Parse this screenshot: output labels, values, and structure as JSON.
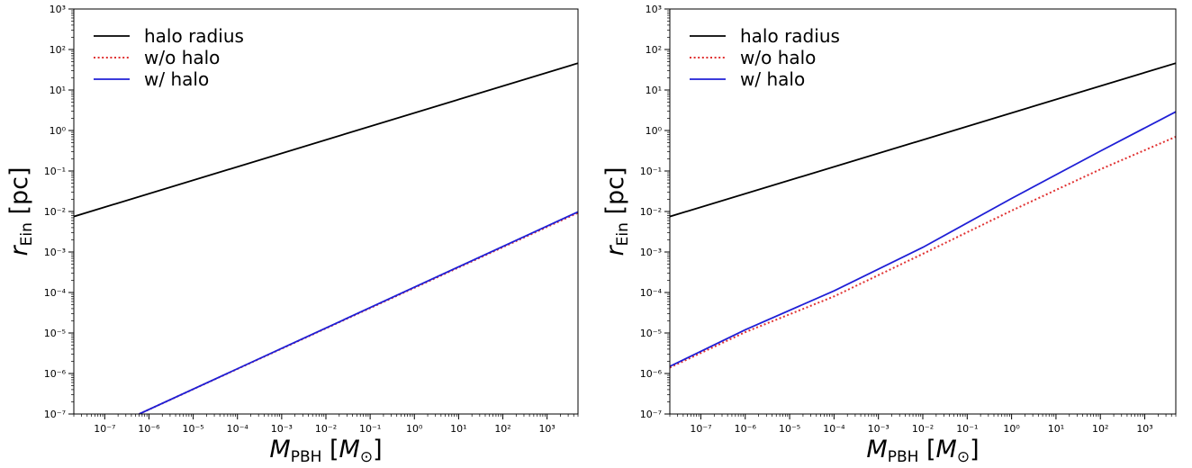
{
  "chart_data": [
    {
      "type": "line",
      "panel": "left",
      "xscale": "log",
      "yscale": "log",
      "xlim": [
        2e-08,
        5000
      ],
      "ylim": [
        1e-07,
        1000
      ],
      "x_ticks": [
        "10⁻⁷",
        "10⁻⁶",
        "10⁻⁵",
        "10⁻⁴",
        "10⁻³",
        "10⁻²",
        "10⁻¹",
        "10⁰",
        "10¹",
        "10²",
        "10³"
      ],
      "y_ticks": [
        "10⁻⁷",
        "10⁻⁶",
        "10⁻⁵",
        "10⁻⁴",
        "10⁻³",
        "10⁻²",
        "10⁻¹",
        "10⁰",
        "10¹",
        "10²",
        "10³"
      ],
      "xlabel": {
        "main": "M",
        "sub": "PBH",
        "unit_open": " [M",
        "unit_sub": "⊙",
        "unit_close": "]"
      },
      "ylabel": {
        "main": "r",
        "sub": "Ein",
        "unit": " [pc]"
      },
      "legend_position": "upper-left",
      "grid": false,
      "series": [
        {
          "name": "halo radius",
          "color": "#000000",
          "style": "solid",
          "x": [
            2e-08,
            5000
          ],
          "y": [
            0.0075,
            46
          ]
        },
        {
          "name": "w/o halo",
          "color": "#e03030",
          "style": "dotted",
          "x": [
            6e-07,
            5000
          ],
          "y": [
            1e-07,
            0.0093
          ]
        },
        {
          "name": "w/ halo",
          "color": "#1f1fd6",
          "style": "solid",
          "x": [
            6e-07,
            5000
          ],
          "y": [
            1e-07,
            0.0098
          ]
        }
      ]
    },
    {
      "type": "line",
      "panel": "right",
      "xscale": "log",
      "yscale": "log",
      "xlim": [
        2e-08,
        5000
      ],
      "ylim": [
        1e-07,
        1000
      ],
      "x_ticks": [
        "10⁻⁷",
        "10⁻⁶",
        "10⁻⁵",
        "10⁻⁴",
        "10⁻³",
        "10⁻²",
        "10⁻¹",
        "10⁰",
        "10¹",
        "10²",
        "10³"
      ],
      "y_ticks": [
        "10⁻⁷",
        "10⁻⁶",
        "10⁻⁵",
        "10⁻⁴",
        "10⁻³",
        "10⁻²",
        "10⁻¹",
        "10⁰",
        "10¹",
        "10²",
        "10³"
      ],
      "xlabel": {
        "main": "M",
        "sub": "PBH",
        "unit_open": " [M",
        "unit_sub": "⊙",
        "unit_close": "]"
      },
      "ylabel": {
        "main": "r",
        "sub": "Ein",
        "unit": " [pc]"
      },
      "legend_position": "upper-left",
      "grid": false,
      "series": [
        {
          "name": "halo radius",
          "color": "#000000",
          "style": "solid",
          "x": [
            2e-08,
            5000
          ],
          "y": [
            0.0075,
            46
          ]
        },
        {
          "name": "w/o halo",
          "color": "#e03030",
          "style": "dotted",
          "x": [
            2e-08,
            1e-06,
            0.0001,
            0.01,
            1,
            100,
            5000
          ],
          "y": [
            1.4e-06,
            1.05e-05,
            8e-05,
            0.0009,
            0.0105,
            0.11,
            0.7
          ]
        },
        {
          "name": "w/ halo",
          "color": "#1f1fd6",
          "style": "solid",
          "x": [
            2e-08,
            1e-06,
            0.0001,
            0.01,
            1,
            100,
            5000
          ],
          "y": [
            1.5e-06,
            1.2e-05,
            0.00011,
            0.0013,
            0.021,
            0.31,
            2.9
          ]
        }
      ]
    }
  ]
}
